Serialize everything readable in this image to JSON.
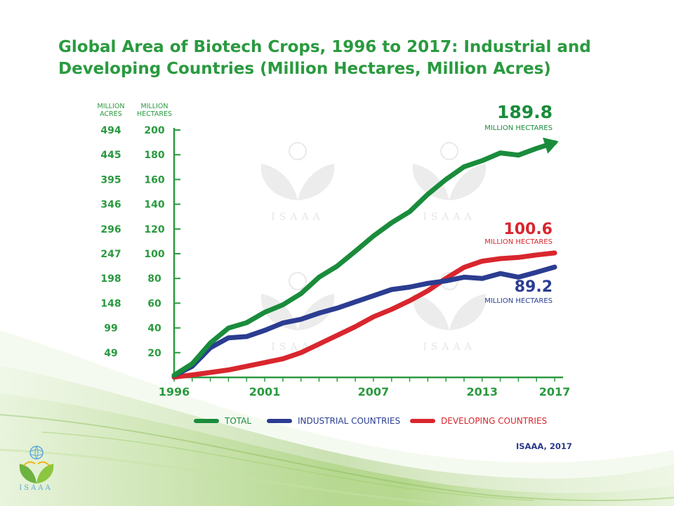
{
  "title": "Global Area of Biotech Crops, 1996 to 2017: Industrial and Developing Countries (Million Hectares, Million Acres)",
  "axis_headers": {
    "acres": "MILLION\nACRES",
    "hectares": "MILLION\nHECTARES"
  },
  "source": "ISAAA, 2017",
  "logo_text": "ISAAA",
  "watermark_text": "ISAAA",
  "colors": {
    "total": "#1a8c3c",
    "industrial": "#2b3d91",
    "developing": "#d9262e",
    "text_green": "#2a9a3f"
  },
  "callouts": {
    "total": {
      "value": "189.8",
      "unit": "MILLION HECTARES"
    },
    "developing": {
      "value": "100.6",
      "unit": "MILLION HECTARES"
    },
    "industrial": {
      "value": "89.2",
      "unit": "MILLION HECTARES"
    }
  },
  "chart_data": {
    "type": "line",
    "title": "Global Area of Biotech Crops, 1996 to 2017: Industrial and Developing Countries (Million Hectares, Million Acres)",
    "x": [
      1996,
      1997,
      1998,
      1999,
      2000,
      2001,
      2002,
      2003,
      2004,
      2005,
      2006,
      2007,
      2008,
      2009,
      2010,
      2011,
      2012,
      2013,
      2014,
      2015,
      2016,
      2017
    ],
    "x_ticks": [
      "1996",
      "2001",
      "2007",
      "2013",
      "2017"
    ],
    "x_tick_values": [
      1996,
      2001,
      2007,
      2013,
      2017
    ],
    "ylim": [
      0,
      200
    ],
    "y_ticks": [
      "20",
      "40",
      "60",
      "80",
      "100",
      "120",
      "140",
      "160",
      "180",
      "200"
    ],
    "y_tick_values": [
      20,
      40,
      60,
      80,
      100,
      120,
      140,
      160,
      180,
      200
    ],
    "y2_ticks": [
      "49",
      "99",
      "148",
      "198",
      "247",
      "296",
      "346",
      "395",
      "445",
      "494"
    ],
    "series": [
      {
        "name": "TOTAL",
        "key": "total",
        "values": [
          1.7,
          11,
          27.8,
          39.9,
          44.2,
          52.6,
          58.7,
          67.7,
          81,
          90,
          102,
          114.3,
          125,
          134,
          148,
          160,
          170.3,
          175.2,
          181.5,
          179.7,
          185.1,
          189.8
        ]
      },
      {
        "name": "INDUSTRIAL COUNTRIES",
        "key": "industrial",
        "values": [
          1.5,
          9,
          24,
          32,
          33,
          38,
          44,
          47,
          52,
          56,
          61,
          66,
          71,
          73,
          76,
          78,
          81,
          80,
          84,
          81,
          85,
          89.2
        ]
      },
      {
        "name": "DEVELOPING COUNTRIES",
        "key": "developing",
        "values": [
          0.2,
          2,
          4,
          6,
          9,
          12,
          15,
          20,
          27,
          34,
          41,
          49,
          55,
          62,
          70,
          80,
          89,
          94,
          96,
          97,
          99,
          100.6
        ]
      }
    ]
  }
}
